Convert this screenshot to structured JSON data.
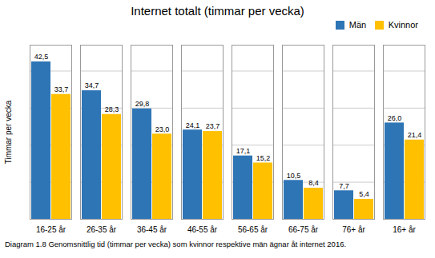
{
  "chart_data": {
    "type": "bar",
    "title": "Internet totalt (timmar per vecka)",
    "ylabel": "Timmar per vecka",
    "caption": "Diagram 1.8 Genomsnittlig tid (timmar per vecka) som kvinnor respektive män ägnar åt internet 2016.",
    "categories": [
      "16-25 år",
      "26-35 år",
      "36-45 år",
      "46-55 år",
      "56-65 år",
      "66-75 år",
      "76+ år",
      "16+ år"
    ],
    "series": [
      {
        "name": "Män",
        "color": "#2E75B6",
        "values": [
          42.5,
          34.7,
          29.8,
          24.1,
          17.1,
          10.5,
          7.7,
          26.0
        ],
        "value_labels": [
          "42,5",
          "34,7",
          "29,8",
          "24,1",
          "17,1",
          "10,5",
          "7,7",
          "26,0"
        ]
      },
      {
        "name": "Kvinnor",
        "color": "#FFC000",
        "values": [
          33.7,
          28.3,
          23.0,
          23.7,
          15.2,
          8.4,
          5.4,
          21.4
        ],
        "value_labels": [
          "33,7",
          "28,3",
          "23,0",
          "23,7",
          "15,2",
          "8,4",
          "5,4",
          "21,4"
        ]
      }
    ],
    "ylim": [
      0,
      47
    ],
    "yticks": [
      0,
      10,
      20,
      30,
      40
    ],
    "grid": true,
    "legend": "upper right",
    "data_labels": true,
    "tick_labels": "x"
  }
}
